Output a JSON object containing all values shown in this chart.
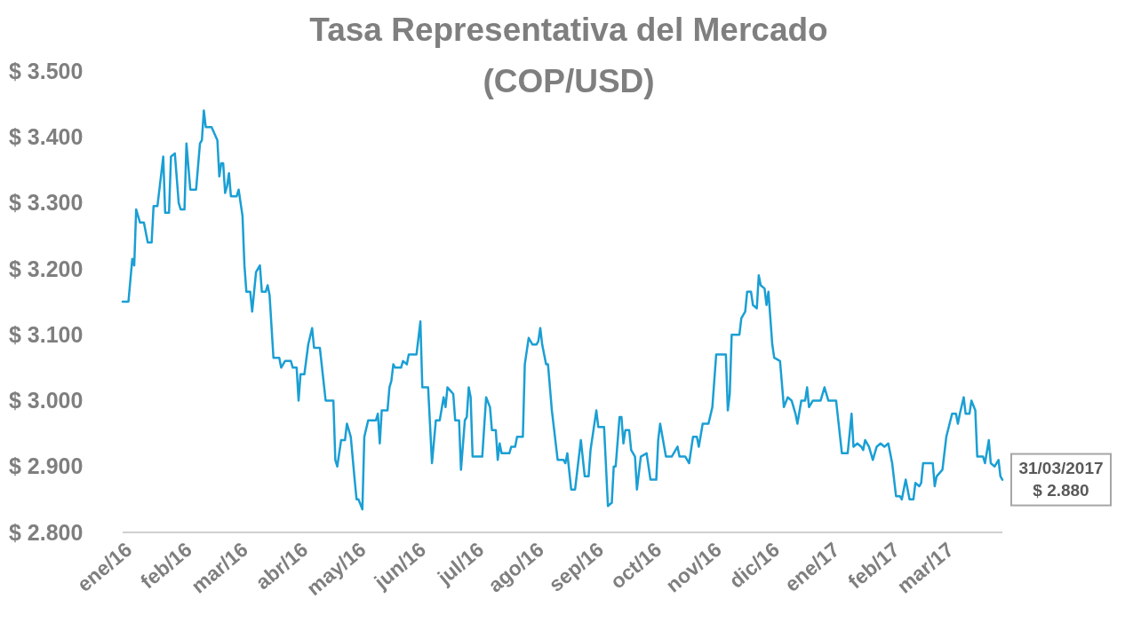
{
  "chart_data": {
    "type": "line",
    "title": "Tasa Representativa del Mercado\n(COP/USD)",
    "xlim": [
      "2016-01-01",
      "2017-03-31"
    ],
    "xticks": [
      {
        "value": "2016-01-01",
        "label": "ene/16"
      },
      {
        "value": "2016-02-01",
        "label": "feb/16"
      },
      {
        "value": "2016-03-01",
        "label": "mar/16"
      },
      {
        "value": "2016-04-01",
        "label": "abr/16"
      },
      {
        "value": "2016-05-01",
        "label": "may/16"
      },
      {
        "value": "2016-06-01",
        "label": "jun/16"
      },
      {
        "value": "2016-07-01",
        "label": "jul/16"
      },
      {
        "value": "2016-08-01",
        "label": "ago/16"
      },
      {
        "value": "2016-09-01",
        "label": "sep/16"
      },
      {
        "value": "2016-10-01",
        "label": "oct/16"
      },
      {
        "value": "2016-11-01",
        "label": "nov/16"
      },
      {
        "value": "2016-12-01",
        "label": "dic/16"
      },
      {
        "value": "2017-01-01",
        "label": "ene/17"
      },
      {
        "value": "2017-02-01",
        "label": "feb/17"
      },
      {
        "value": "2017-03-01",
        "label": "mar/17"
      }
    ],
    "ylim": [
      2800,
      3500
    ],
    "yticks": [
      {
        "value": 2800,
        "label": "$ 2.800"
      },
      {
        "value": 2900,
        "label": "$ 2.900"
      },
      {
        "value": 3000,
        "label": "$ 3.000"
      },
      {
        "value": 3100,
        "label": "$ 3.100"
      },
      {
        "value": 3200,
        "label": "$ 3.200"
      },
      {
        "value": 3300,
        "label": "$ 3.300"
      },
      {
        "value": 3400,
        "label": "$ 3.400"
      },
      {
        "value": 3500,
        "label": "$ 3.500"
      }
    ],
    "grid": false,
    "marker": "none",
    "line_style": "solid",
    "annotations": [
      {
        "text": "31/03/2017\n$ 2.880",
        "x": "2017-03-31",
        "y": 2880
      }
    ],
    "series": [
      {
        "color": "#1a9fd4",
        "x": [
          "2016-01-01",
          "2016-01-04",
          "2016-01-06",
          "2016-01-07",
          "2016-01-08",
          "2016-01-10",
          "2016-01-12",
          "2016-01-14",
          "2016-01-16",
          "2016-01-17",
          "2016-01-19",
          "2016-01-22",
          "2016-01-23",
          "2016-01-25",
          "2016-01-26",
          "2016-01-28",
          "2016-01-30",
          "2016-01-31",
          "2016-02-02",
          "2016-02-03",
          "2016-02-05",
          "2016-02-08",
          "2016-02-10",
          "2016-02-11",
          "2016-02-12",
          "2016-02-13",
          "2016-02-16",
          "2016-02-19",
          "2016-02-20",
          "2016-02-21",
          "2016-02-22",
          "2016-02-23",
          "2016-02-24",
          "2016-02-25",
          "2016-02-26",
          "2016-02-29",
          "2016-03-01",
          "2016-03-03",
          "2016-03-04",
          "2016-03-05",
          "2016-03-07",
          "2016-03-08",
          "2016-03-10",
          "2016-03-12",
          "2016-03-13",
          "2016-03-15",
          "2016-03-16",
          "2016-03-17",
          "2016-03-19",
          "2016-03-22",
          "2016-03-23",
          "2016-03-25",
          "2016-03-28",
          "2016-03-29",
          "2016-03-31",
          "2016-04-01",
          "2016-04-02",
          "2016-04-04",
          "2016-04-06",
          "2016-04-08",
          "2016-04-09",
          "2016-04-12",
          "2016-04-15",
          "2016-04-19",
          "2016-04-20",
          "2016-04-21",
          "2016-04-23",
          "2016-04-25",
          "2016-04-26",
          "2016-04-28",
          "2016-04-30",
          "2016-05-01",
          "2016-05-02",
          "2016-05-04",
          "2016-05-05",
          "2016-05-07",
          "2016-05-11",
          "2016-05-12",
          "2016-05-13",
          "2016-05-14",
          "2016-05-17",
          "2016-05-18",
          "2016-05-19",
          "2016-05-20",
          "2016-05-21",
          "2016-05-24",
          "2016-05-25",
          "2016-05-27",
          "2016-05-28",
          "2016-06-01",
          "2016-06-03",
          "2016-06-04",
          "2016-06-07",
          "2016-06-09",
          "2016-06-11",
          "2016-06-13",
          "2016-06-15",
          "2016-06-16",
          "2016-06-17",
          "2016-06-20",
          "2016-06-21",
          "2016-06-23",
          "2016-06-24",
          "2016-06-26",
          "2016-06-27",
          "2016-06-28",
          "2016-06-29",
          "2016-06-30",
          "2016-07-03",
          "2016-07-05",
          "2016-07-07",
          "2016-07-09",
          "2016-07-10",
          "2016-07-12",
          "2016-07-13",
          "2016-07-14",
          "2016-07-15",
          "2016-07-19",
          "2016-07-20",
          "2016-07-22",
          "2016-07-23",
          "2016-07-26",
          "2016-07-27",
          "2016-07-29",
          "2016-07-31",
          "2016-08-02",
          "2016-08-03",
          "2016-08-04",
          "2016-08-05",
          "2016-08-07",
          "2016-08-08",
          "2016-08-10",
          "2016-08-11",
          "2016-08-13",
          "2016-08-16",
          "2016-08-17",
          "2016-08-18",
          "2016-08-20",
          "2016-08-22",
          "2016-08-25",
          "2016-08-27",
          "2016-08-29",
          "2016-08-30",
          "2016-09-02",
          "2016-09-03",
          "2016-09-06",
          "2016-09-08",
          "2016-09-10",
          "2016-09-11",
          "2016-09-12",
          "2016-09-14",
          "2016-09-15",
          "2016-09-16",
          "2016-09-17",
          "2016-09-19",
          "2016-09-20",
          "2016-09-22",
          "2016-09-23",
          "2016-09-25",
          "2016-09-28",
          "2016-09-30",
          "2016-10-03",
          "2016-10-04",
          "2016-10-05",
          "2016-10-08",
          "2016-10-11",
          "2016-10-12",
          "2016-10-14",
          "2016-10-15",
          "2016-10-18",
          "2016-10-20",
          "2016-10-22",
          "2016-10-24",
          "2016-10-25",
          "2016-10-27",
          "2016-10-30",
          "2016-11-01",
          "2016-11-03",
          "2016-11-08",
          "2016-11-09",
          "2016-11-10",
          "2016-11-11",
          "2016-11-15",
          "2016-11-16",
          "2016-11-18",
          "2016-11-19",
          "2016-11-21",
          "2016-11-22",
          "2016-11-24",
          "2016-11-25",
          "2016-11-26",
          "2016-11-28",
          "2016-11-29",
          "2016-11-30",
          "2016-12-02",
          "2016-12-03",
          "2016-12-06",
          "2016-12-08",
          "2016-12-10",
          "2016-12-12",
          "2016-12-14",
          "2016-12-15",
          "2016-12-17",
          "2016-12-19",
          "2016-12-20",
          "2016-12-21",
          "2016-12-23",
          "2016-12-27",
          "2016-12-29",
          "2016-12-31",
          "2017-01-04",
          "2017-01-07",
          "2017-01-10",
          "2017-01-12",
          "2017-01-13",
          "2017-01-15",
          "2017-01-17",
          "2017-01-18",
          "2017-01-19",
          "2017-01-21",
          "2017-01-23",
          "2017-01-25",
          "2017-01-27",
          "2017-01-29",
          "2017-01-31",
          "2017-02-02",
          "2017-02-04",
          "2017-02-06",
          "2017-02-07",
          "2017-02-09",
          "2017-02-11",
          "2017-02-13",
          "2017-02-14",
          "2017-02-16",
          "2017-02-17",
          "2017-02-18",
          "2017-02-23",
          "2017-02-24",
          "2017-02-25",
          "2017-02-28",
          "2017-03-02",
          "2017-03-05",
          "2017-03-07",
          "2017-03-08",
          "2017-03-09",
          "2017-03-11",
          "2017-03-12",
          "2017-03-14",
          "2017-03-15",
          "2017-03-17",
          "2017-03-18",
          "2017-03-21",
          "2017-03-22",
          "2017-03-24",
          "2017-03-25",
          "2017-03-27",
          "2017-03-29",
          "2017-03-30",
          "2017-03-31"
        ],
        "values": [
          3150,
          3150,
          3215,
          3205,
          3290,
          3270,
          3270,
          3240,
          3240,
          3295,
          3295,
          3370,
          3285,
          3285,
          3370,
          3375,
          3300,
          3290,
          3290,
          3390,
          3320,
          3320,
          3390,
          3395,
          3440,
          3415,
          3415,
          3395,
          3340,
          3360,
          3360,
          3315,
          3325,
          3345,
          3310,
          3310,
          3320,
          3280,
          3205,
          3165,
          3165,
          3135,
          3195,
          3205,
          3165,
          3165,
          3175,
          3160,
          3065,
          3065,
          3050,
          3060,
          3060,
          3050,
          3050,
          3000,
          3040,
          3040,
          3085,
          3110,
          3080,
          3080,
          3000,
          3000,
          2910,
          2900,
          2940,
          2940,
          2965,
          2945,
          2880,
          2850,
          2850,
          2835,
          2945,
          2970,
          2970,
          2980,
          2935,
          2985,
          2985,
          3020,
          3030,
          3055,
          3050,
          3050,
          3060,
          3055,
          3070,
          3070,
          3120,
          3020,
          3020,
          2905,
          2970,
          2970,
          3005,
          2990,
          3020,
          3010,
          2970,
          2970,
          2895,
          2970,
          2975,
          3020,
          3005,
          2915,
          2915,
          2915,
          3005,
          2990,
          2955,
          2955,
          2910,
          2935,
          2920,
          2920,
          2930,
          2930,
          2945,
          2945,
          3055,
          3095,
          3085,
          3085,
          3090,
          3110,
          3085,
          3055,
          3055,
          2985,
          2960,
          2910,
          2910,
          2905,
          2920,
          2865,
          2865,
          2940,
          2885,
          2885,
          2925,
          2985,
          2960,
          2960,
          2840,
          2845,
          2900,
          2900,
          2975,
          2975,
          2935,
          2955,
          2955,
          2925,
          2915,
          2865,
          2915,
          2920,
          2880,
          2880,
          2940,
          2965,
          2915,
          2915,
          2920,
          2930,
          2915,
          2915,
          2905,
          2945,
          2945,
          2930,
          2965,
          2965,
          2990,
          3070,
          3070,
          2985,
          3010,
          3100,
          3100,
          3125,
          3135,
          3165,
          3165,
          3145,
          3140,
          3190,
          3175,
          3170,
          3145,
          3165,
          3085,
          3065,
          3060,
          2990,
          3005,
          3000,
          2980,
          2965,
          3000,
          3000,
          3020,
          2990,
          3000,
          3000,
          3020,
          3000,
          3000,
          2920,
          2920,
          2980,
          2930,
          2935,
          2930,
          2925,
          2940,
          2930,
          2910,
          2930,
          2935,
          2930,
          2935,
          2905,
          2855,
          2855,
          2850,
          2880,
          2850,
          2850,
          2875,
          2870,
          2875,
          2905,
          2905,
          2870,
          2885,
          2895,
          2945,
          2980,
          2980,
          2965,
          2980,
          3005,
          2980,
          2980,
          3000,
          2985,
          2915,
          2915,
          2905,
          2940,
          2905,
          2900,
          2910,
          2885,
          2880
        ]
      }
    ]
  }
}
